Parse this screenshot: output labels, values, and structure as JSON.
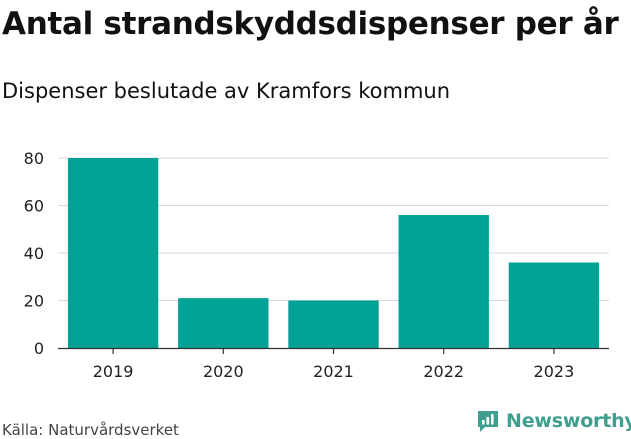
{
  "header": {
    "title": "Antal strandskyddsdispenser per år",
    "subtitle": "Dispenser beslutade av Kramfors kommun"
  },
  "footer": {
    "source": "Källa: Naturvårdsverket",
    "brand": "Newsworthy"
  },
  "colors": {
    "bar": "#00a296",
    "grid": "#d9d9d9",
    "axis": "#333333",
    "brand": "#3f9e8d"
  },
  "chart_data": {
    "type": "bar",
    "title": "Antal strandskyddsdispenser per år",
    "subtitle": "Dispenser beslutade av Kramfors kommun",
    "categories": [
      "2019",
      "2020",
      "2021",
      "2022",
      "2023"
    ],
    "values": [
      80,
      21,
      20,
      56,
      36
    ],
    "ylim": [
      0,
      80
    ],
    "yticks": [
      0,
      20,
      40,
      60,
      80
    ],
    "xlabel": "",
    "ylabel": "",
    "grid": true,
    "legend": "none"
  }
}
